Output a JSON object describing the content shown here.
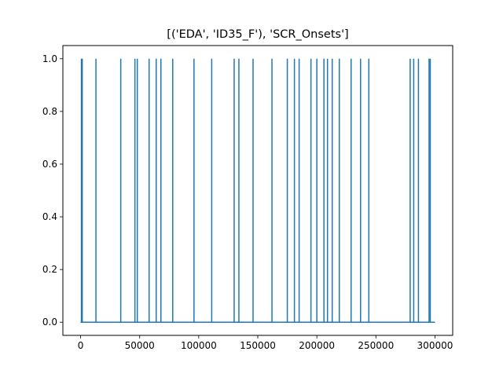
{
  "chart_data": {
    "type": "line",
    "title": "[('EDA', 'ID35_F'), 'SCR_Onsets']",
    "xlabel": "",
    "ylabel": "",
    "xlim": [
      -15000,
      315000
    ],
    "ylim": [
      -0.05,
      1.05
    ],
    "x_ticks": [
      0,
      50000,
      100000,
      150000,
      200000,
      250000,
      300000
    ],
    "x_tick_labels": [
      "0",
      "50000",
      "100000",
      "150000",
      "200000",
      "250000",
      "300000"
    ],
    "y_ticks": [
      0.0,
      0.2,
      0.4,
      0.6,
      0.8,
      1.0
    ],
    "y_tick_labels": [
      "0.0",
      "0.2",
      "0.4",
      "0.6",
      "0.8",
      "1.0"
    ],
    "grid": false,
    "legend": "none",
    "x_range": [
      0,
      300000
    ],
    "baseline": 0,
    "series": [
      {
        "color": "#1f77b4",
        "spike_value": 1,
        "spike_x": [
          700,
          1400,
          13000,
          34000,
          46000,
          48000,
          58000,
          64000,
          68000,
          78000,
          96000,
          111000,
          130000,
          134000,
          146000,
          162000,
          175000,
          181000,
          185000,
          195000,
          200000,
          206000,
          209000,
          213000,
          219000,
          229000,
          237000,
          244000,
          279000,
          282000,
          286000,
          295000,
          296000
        ]
      }
    ]
  }
}
